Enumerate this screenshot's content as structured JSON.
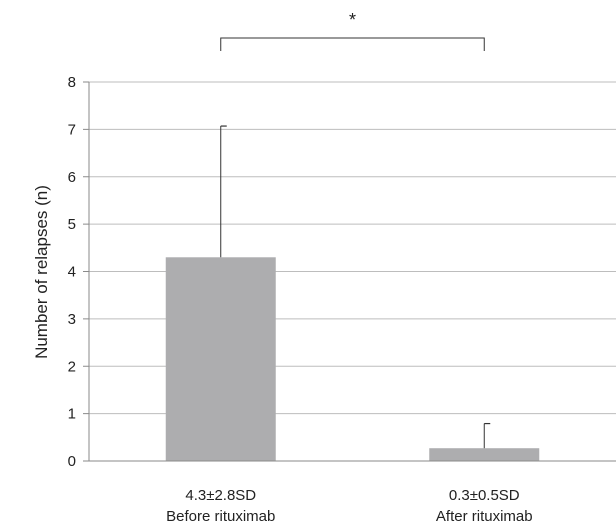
{
  "chart_data": {
    "type": "bar",
    "title": "",
    "xlabel": "",
    "ylabel": "Number of relapses (n)",
    "ylim": [
      0,
      8
    ],
    "yticks": [
      0,
      1,
      2,
      3,
      4,
      5,
      6,
      7,
      8
    ],
    "grid": true,
    "legend": "none",
    "categories": [
      {
        "stat": "4.3±2.8SD",
        "label": "Before rituximab"
      },
      {
        "stat": "0.3±0.5SD",
        "label": "After rituximab"
      }
    ],
    "values": [
      4.3,
      0.27
    ],
    "error_upper": [
      2.77,
      0.52
    ],
    "bar_color": "#adadaf",
    "significance": {
      "between": [
        0,
        1
      ],
      "label": "*"
    }
  }
}
